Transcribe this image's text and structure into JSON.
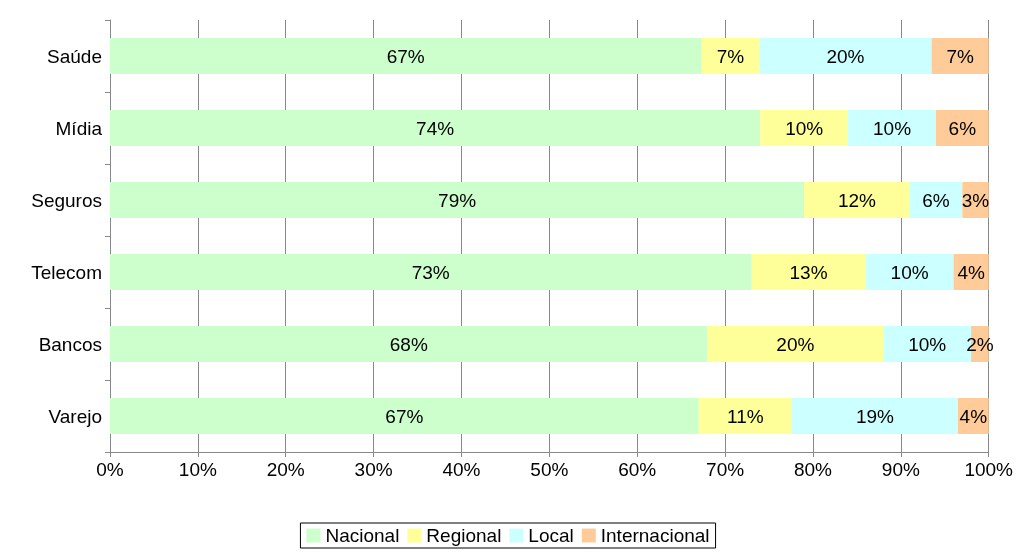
{
  "chart_data": {
    "type": "bar",
    "orientation": "horizontal",
    "stacked": true,
    "categories": [
      "Saúde",
      "Mídia",
      "Seguros",
      "Telecom",
      "Bancos",
      "Varejo"
    ],
    "series": [
      {
        "name": "Nacional",
        "color": "#ccffcc",
        "values": [
          67.3,
          74,
          79,
          73,
          68,
          67
        ],
        "value_labels": [
          "67%",
          "74%",
          "79%",
          "73%",
          "68%",
          "67%"
        ]
      },
      {
        "name": "Regional",
        "color": "#ffff99",
        "values": [
          6.6,
          10,
          12,
          13,
          20,
          10.6
        ],
        "value_labels": [
          "7%",
          "10%",
          "12%",
          "13%",
          "20%",
          "11%"
        ]
      },
      {
        "name": "Local",
        "color": "#ccffff",
        "values": [
          19.6,
          10,
          6,
          10,
          10,
          18.9
        ],
        "value_labels": [
          "20%",
          "10%",
          "6%",
          "10%",
          "10%",
          "19%"
        ]
      },
      {
        "name": "Internacional",
        "color": "#ffcc99",
        "values": [
          6.5,
          6,
          3,
          4,
          2,
          3.5
        ],
        "value_labels": [
          "7%",
          "6%",
          "3%",
          "4%",
          "2%",
          "4%"
        ]
      }
    ],
    "xlim": [
      0,
      100
    ],
    "xticks": [
      {
        "value": 0,
        "label": "0%"
      },
      {
        "value": 10,
        "label": "10%"
      },
      {
        "value": 20,
        "label": "20%"
      },
      {
        "value": 30,
        "label": "30%"
      },
      {
        "value": 40,
        "label": "40%"
      },
      {
        "value": 50,
        "label": "50%"
      },
      {
        "value": 60,
        "label": "60%"
      },
      {
        "value": 70,
        "label": "70%"
      },
      {
        "value": 80,
        "label": "80%"
      },
      {
        "value": 90,
        "label": "90%"
      },
      {
        "value": 100,
        "label": "100%"
      }
    ],
    "grid": "x",
    "legend": "bottom"
  }
}
